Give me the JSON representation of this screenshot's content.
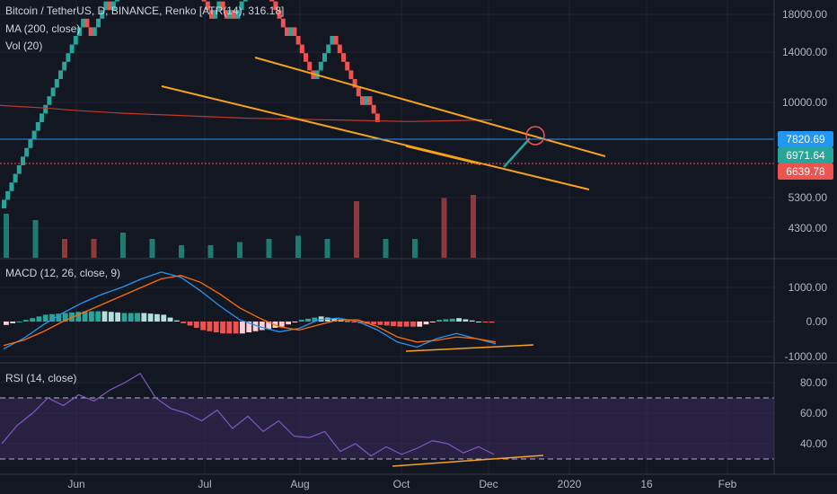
{
  "colors": {
    "background": "#131722",
    "grid": "#1f2433",
    "up": "#26a69a",
    "down": "#ef5350",
    "vol_up": "#1f7a71",
    "vol_down": "#8a3a3d",
    "ma": "#c0392b",
    "trend": "#f7a21b",
    "hline": "#2196f3",
    "arrow": "#26a69a",
    "macd_line": "#2196f3",
    "signal_line": "#ff6d00",
    "hist_pos_strong": "#26a69a",
    "hist_pos_weak": "#b2dfdb",
    "hist_neg_strong": "#ef5350",
    "hist_neg_weak": "#ffcdd2",
    "rsi_line": "#7e57c2",
    "rsi_band": "#3a2a5c",
    "separator": "#363a45"
  },
  "legend": {
    "main_title": "Bitcoin / TetherUS, D, BINANCE, Renko [ATR(14), 316.18]",
    "ma_label": "MA (200, close)",
    "vol_label": "Vol (20)",
    "macd_label": "MACD (12, 26, close, 9)",
    "rsi_label": "RSI (14, close)"
  },
  "price_axis": {
    "ticks": [
      "18000.00",
      "14000.00",
      "10000.00",
      "5300.00",
      "4300.00"
    ],
    "tags": [
      {
        "text": "7820.69",
        "color": "#2196f3"
      },
      {
        "text": "6971.64",
        "color": "#26a69a"
      },
      {
        "text": "6639.78",
        "color": "#ef5350"
      }
    ]
  },
  "macd_axis": {
    "ticks": [
      "1000.00",
      "0.00",
      "-1000.00"
    ]
  },
  "rsi_axis": {
    "ticks": [
      "80.00",
      "60.00",
      "40.00"
    ]
  },
  "time_axis": {
    "labels": [
      "Jun",
      "Jul",
      "Aug",
      "Oct",
      "Dec",
      "2020",
      "16",
      "Feb"
    ]
  },
  "chart_data": [
    {
      "type": "renko",
      "title": "Bitcoin / TetherUS, D, BINANCE, Renko [ATR(14), 316.18]",
      "box_size": 316.18,
      "price_ticks": [
        18000,
        14000,
        10000,
        5300,
        4300
      ],
      "series": [
        {
          "name": "MA (200, close)",
          "values": [
            9800,
            9650,
            9450,
            9300,
            9200,
            9100,
            9000,
            8950,
            8900,
            8850,
            8800,
            8850,
            8900
          ]
        },
        {
          "name": "Vol (20)",
          "values": [
            0.7,
            0.6,
            0.3,
            0.3,
            0.4,
            0.3,
            0.2,
            0.2,
            0.25,
            0.3,
            0.35,
            0.3,
            0.9,
            0.3,
            0.3,
            0.95,
            1.0
          ]
        }
      ],
      "reference_lines": [
        7820.69
      ],
      "last_values": [
        6971.64,
        6639.78
      ]
    },
    {
      "type": "line",
      "title": "MACD (12, 26, close, 9)",
      "ylim": [
        -1000,
        1600
      ],
      "y_ticks": [
        1000,
        0,
        -1000
      ],
      "series": [
        {
          "name": "MACD",
          "values": [
            -800,
            -500,
            -100,
            250,
            550,
            800,
            1000,
            1250,
            1450,
            1300,
            900,
            450,
            50,
            -150,
            -300,
            -200,
            50,
            100,
            0,
            -250,
            -600,
            -750,
            -500,
            -350,
            -500,
            -650
          ]
        },
        {
          "name": "Signal",
          "values": [
            -700,
            -550,
            -300,
            0,
            250,
            500,
            750,
            1000,
            1250,
            1350,
            1150,
            800,
            400,
            100,
            -150,
            -250,
            -100,
            50,
            50,
            -150,
            -450,
            -600,
            -550,
            -450,
            -500,
            -600
          ]
        },
        {
          "name": "Histogram",
          "values": [
            -100,
            50,
            200,
            250,
            300,
            300,
            250,
            250,
            200,
            -50,
            -250,
            -350,
            -350,
            -250,
            -150,
            50,
            150,
            50,
            -50,
            -100,
            -150,
            -150,
            50,
            100,
            0,
            -50
          ]
        }
      ]
    },
    {
      "type": "line",
      "title": "RSI (14, close)",
      "ylim": [
        25,
        90
      ],
      "y_ticks": [
        80,
        60,
        40
      ],
      "bands": [
        70,
        30
      ],
      "series": [
        {
          "name": "RSI",
          "values": [
            40,
            52,
            60,
            70,
            65,
            72,
            68,
            75,
            80,
            86,
            70,
            63,
            60,
            55,
            62,
            50,
            58,
            48,
            55,
            45,
            44,
            48,
            35,
            40,
            32,
            38,
            33,
            37,
            42,
            40,
            34,
            38,
            33
          ]
        }
      ]
    }
  ]
}
